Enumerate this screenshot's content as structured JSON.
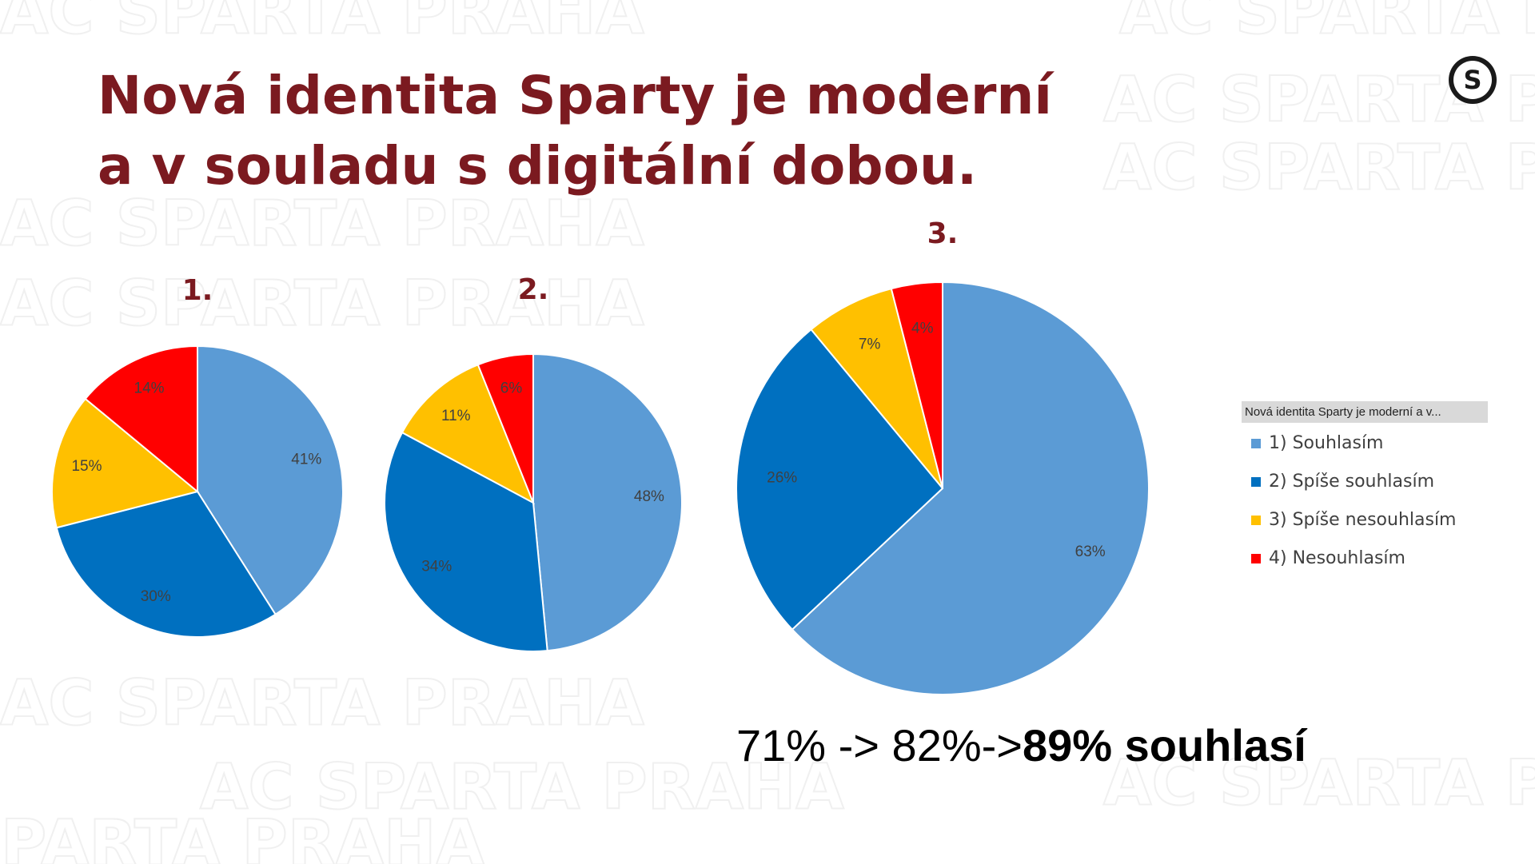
{
  "title": [
    "Nová identita Sparty je moderní",
    "a v souladu s digitální dobou."
  ],
  "watermark": "AC SPARTA PRAHA",
  "logo": "S",
  "legend": {
    "title": "Nová identita Sparty je moderní a v...",
    "categories": [
      "1) Souhlasím",
      "2) Spíše souhlasím",
      "3) Spíše nesouhlasím",
      "4) Nesouhlasím"
    ],
    "colors": [
      "#5b9bd5",
      "#0070c0",
      "#ffc000",
      "#ff0000"
    ]
  },
  "chart_data": [
    {
      "type": "pie",
      "title": "1.",
      "values": [
        41,
        30,
        15,
        14
      ],
      "value_labels": [
        "41%",
        "30%",
        "15%",
        "14%"
      ]
    },
    {
      "type": "pie",
      "title": "2.",
      "values": [
        48,
        34,
        11,
        6
      ],
      "value_labels": [
        "48%",
        "34%",
        "11%",
        "6%"
      ]
    },
    {
      "type": "pie",
      "title": "3.",
      "values": [
        63,
        26,
        7,
        4
      ],
      "value_labels": [
        "63%",
        "26%",
        "7%",
        "4%"
      ]
    }
  ],
  "summary": {
    "text": "71% -> 82%->",
    "bold": "89% souhlasí"
  }
}
